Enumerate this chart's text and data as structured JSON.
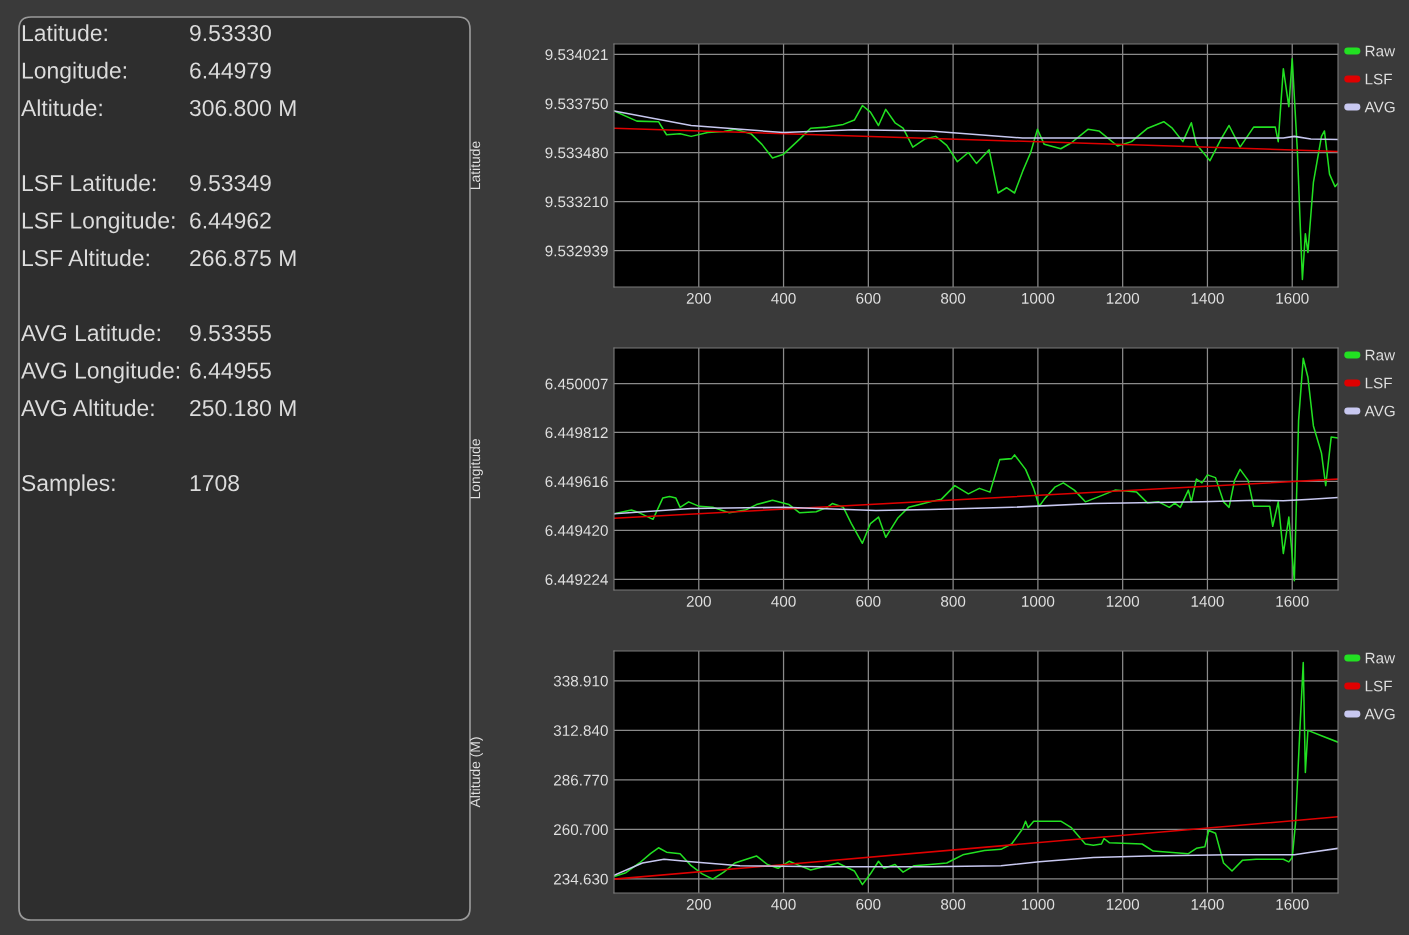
{
  "chart_data": [
    {
      "type": "other",
      "annotations": [
        "Latitude:",
        "9.53330",
        "Longitude:",
        "6.44979",
        "Altitude:",
        "306.800 M",
        "LSF Latitude:",
        "9.53349",
        "LSF Longitude:",
        "6.44962",
        "LSF Altitude:",
        "266.875 M",
        "AVG Latitude:",
        "9.53355",
        "AVG Longitude:",
        "6.44955",
        "AVG Altitude:",
        "250.180 M",
        "Samples:",
        "1708"
      ]
    },
    {
      "type": "line",
      "ylabel": "Latitude",
      "xlim": [
        0,
        1708
      ],
      "xticks": [
        200,
        400,
        600,
        800,
        1000,
        1200,
        1400,
        1600
      ],
      "ylim": [
        9.532739,
        9.534078
      ],
      "yticks": [
        9.534021,
        {
          "value": 9.53375,
          "label": "9.533750"
        },
        {
          "value": 9.53348,
          "label": "9.533480"
        },
        {
          "value": 9.53321,
          "label": "9.533210"
        },
        9.532939
      ],
      "grid": true,
      "legend": "right",
      "series": [
        {
          "name": "Raw",
          "color": "#22e022",
          "x": [
            0,
            54,
            105,
            124,
            156,
            182,
            221,
            259,
            285,
            323,
            349,
            374,
            400,
            438,
            464,
            503,
            541,
            567,
            586,
            605,
            624,
            641,
            663,
            682,
            705,
            733,
            759,
            785,
            810,
            836,
            855,
            885,
            906,
            926,
            945,
            964,
            983,
            999,
            1015,
            1054,
            1079,
            1118,
            1144,
            1188,
            1221,
            1259,
            1297,
            1317,
            1342,
            1362,
            1374,
            1406,
            1432,
            1451,
            1477,
            1509,
            1560,
            1567,
            1579,
            1592,
            1600,
            1612,
            1624,
            1631,
            1637,
            1650,
            1669,
            1676,
            1688,
            1701,
            1708
          ],
          "values": [
            9.533709,
            9.533653,
            9.53365,
            9.533578,
            9.533584,
            9.533569,
            9.53359,
            9.533596,
            9.533608,
            9.533584,
            9.533525,
            9.53345,
            9.533471,
            9.533554,
            9.533614,
            9.53362,
            9.533635,
            9.533659,
            9.533739,
            9.533703,
            9.533629,
            9.533718,
            9.533644,
            9.533614,
            9.53351,
            9.533554,
            9.533569,
            9.533519,
            9.533429,
            9.53348,
            9.53342,
            9.533495,
            9.533257,
            9.533286,
            9.533257,
            9.533376,
            9.53348,
            9.533608,
            9.533525,
            9.533501,
            9.533534,
            9.533608,
            9.533599,
            9.533516,
            9.53354,
            9.533614,
            9.53365,
            9.533614,
            9.53354,
            9.533644,
            9.533525,
            9.533435,
            9.533554,
            9.533629,
            9.53351,
            9.53362,
            9.53362,
            9.53354,
            9.533942,
            9.533733,
            9.533996,
            9.533495,
            9.53278,
            9.533033,
            9.532929,
            9.533316,
            9.533569,
            9.533599,
            9.533361,
            9.533292,
            9.53331
          ]
        },
        {
          "name": "LSF",
          "color": "#e00000",
          "x": [
            0,
            1708
          ],
          "values": [
            9.533614,
            9.533486
          ]
        },
        {
          "name": "AVG",
          "color": "#c8c8f0",
          "x": [
            0,
            182,
            400,
            567,
            746,
            964,
            1579,
            1605,
            1644,
            1708
          ],
          "values": [
            9.533709,
            9.533629,
            9.53359,
            9.533605,
            9.533599,
            9.53356,
            9.53356,
            9.533569,
            9.533554,
            9.533552
          ]
        }
      ]
    },
    {
      "type": "line",
      "ylabel": "Longitude",
      "xlim": [
        0,
        1708
      ],
      "xticks": [
        200,
        400,
        600,
        800,
        1000,
        1200,
        1400,
        1600
      ],
      "ylim": [
        6.449181,
        6.45015
      ],
      "yticks": [
        6.450007,
        6.449812,
        6.449616,
        {
          "value": 6.44942,
          "label": "6.449420"
        },
        6.449224
      ],
      "grid": true,
      "legend": "right",
      "series": [
        {
          "name": "Raw",
          "color": "#22e022",
          "x": [
            0,
            41,
            60,
            92,
            105,
            115,
            131,
            146,
            156,
            176,
            201,
            233,
            272,
            310,
            336,
            374,
            413,
            438,
            477,
            503,
            515,
            541,
            560,
            586,
            605,
            624,
            641,
            669,
            695,
            721,
            746,
            772,
            804,
            836,
            862,
            887,
            910,
            938,
            945,
            971,
            990,
            1003,
            1015,
            1041,
            1060,
            1086,
            1112,
            1144,
            1182,
            1208,
            1233,
            1259,
            1285,
            1310,
            1323,
            1336,
            1355,
            1362,
            1374,
            1387,
            1400,
            1419,
            1438,
            1451,
            1464,
            1477,
            1496,
            1509,
            1547,
            1554,
            1567,
            1579,
            1592,
            1605,
            1615,
            1626,
            1637,
            1650,
            1669,
            1679,
            1692,
            1708
          ],
          "values": [
            6.449486,
            6.449501,
            6.44949,
            6.449464,
            6.449512,
            6.449549,
            6.449555,
            6.449549,
            6.449512,
            6.449534,
            6.449516,
            6.449512,
            6.44949,
            6.449501,
            6.449523,
            6.44954,
            6.449523,
            6.44949,
            6.449494,
            6.449512,
            6.449527,
            6.449512,
            6.449447,
            6.449368,
            6.449447,
            6.449473,
            6.449392,
            6.449468,
            6.449512,
            6.449523,
            6.449534,
            6.449544,
            6.449599,
            6.449566,
            6.449588,
            6.449573,
            6.449703,
            6.449707,
            6.449722,
            6.449664,
            6.449588,
            6.449516,
            6.449544,
            6.449594,
            6.44961,
            6.449581,
            6.449534,
            6.449555,
            6.449581,
            6.449577,
            6.449573,
            6.449529,
            6.449534,
            6.449512,
            6.449529,
            6.449512,
            6.449581,
            6.449534,
            6.449625,
            6.44961,
            6.449642,
            6.449631,
            6.449534,
            6.449512,
            6.44962,
            6.449664,
            6.44962,
            6.449516,
            6.449516,
            6.449436,
            6.449534,
            6.449327,
            6.449473,
            6.449218,
            6.449859,
            6.450109,
            6.450033,
            6.449838,
            6.449729,
            6.449599,
            6.449794,
            6.44979
          ]
        },
        {
          "name": "LSF",
          "color": "#e00000",
          "x": [
            0,
            1708
          ],
          "values": [
            6.449468,
            6.449625
          ]
        },
        {
          "name": "AVG",
          "color": "#c8c8f0",
          "x": [
            0,
            182,
            400,
            618,
            746,
            938,
            1131,
            1387,
            1515,
            1579,
            1644,
            1708
          ],
          "values": [
            6.449486,
            6.449507,
            6.449512,
            6.449499,
            6.449503,
            6.449512,
            6.449527,
            6.449534,
            6.44954,
            6.449538,
            6.449544,
            6.449551
          ]
        }
      ]
    },
    {
      "type": "line",
      "ylabel": "Altitude (M)",
      "xlim": [
        0,
        1708
      ],
      "xticks": [
        200,
        400,
        600,
        800,
        1000,
        1200,
        1400,
        1600
      ],
      "ylim": [
        227.2,
        354.6
      ],
      "yticks": [
        {
          "value": 338.91,
          "label": "338.910"
        },
        {
          "value": 312.84,
          "label": "312.840"
        },
        {
          "value": 286.77,
          "label": "286.770"
        },
        {
          "value": 260.7,
          "label": "260.700"
        },
        {
          "value": 234.63,
          "label": "234.630"
        }
      ],
      "grid": true,
      "legend": "right",
      "series": [
        {
          "name": "Raw",
          "color": "#22e022",
          "x": [
            0,
            28,
            60,
            86,
            105,
            124,
            156,
            182,
            208,
            233,
            259,
            285,
            336,
            362,
            387,
            413,
            438,
            464,
            490,
            528,
            567,
            586,
            605,
            624,
            637,
            663,
            682,
            708,
            746,
            785,
            823,
            874,
            913,
            938,
            964,
            971,
            977,
            990,
            1054,
            1079,
            1112,
            1131,
            1150,
            1156,
            1169,
            1246,
            1272,
            1310,
            1355,
            1374,
            1394,
            1403,
            1419,
            1438,
            1458,
            1483,
            1515,
            1579,
            1592,
            1600,
            1608,
            1618,
            1626,
            1631,
            1637,
            1669,
            1708
          ],
          "values": [
            235.9,
            237.9,
            243.0,
            247.9,
            251.0,
            248.7,
            247.9,
            241.6,
            237.3,
            234.5,
            238.2,
            243.0,
            246.7,
            242.2,
            240.2,
            243.9,
            241.6,
            239.3,
            240.8,
            243.0,
            238.8,
            231.6,
            237.3,
            243.9,
            240.2,
            242.2,
            238.2,
            241.6,
            242.2,
            243.0,
            247.3,
            249.6,
            250.2,
            253.0,
            261.0,
            265.0,
            261.6,
            265.0,
            265.0,
            261.6,
            253.0,
            252.4,
            253.0,
            255.9,
            253.6,
            253.0,
            249.3,
            248.7,
            247.9,
            250.7,
            251.6,
            260.1,
            258.7,
            243.0,
            238.8,
            244.5,
            245.0,
            245.0,
            243.6,
            245.9,
            264.4,
            312.8,
            348.5,
            290.6,
            312.8,
            310.0,
            306.6
          ]
        },
        {
          "name": "LSF",
          "color": "#e00000",
          "x": [
            0,
            1708
          ],
          "values": [
            234.5,
            267.3
          ]
        },
        {
          "name": "AVG",
          "color": "#c8c8f0",
          "x": [
            0,
            67,
            118,
            182,
            297,
            490,
            746,
            913,
            1003,
            1131,
            1259,
            1451,
            1605,
            1644,
            1708
          ],
          "values": [
            236.5,
            243.0,
            245.0,
            243.6,
            241.6,
            241.0,
            241.0,
            241.6,
            243.6,
            245.9,
            246.7,
            247.3,
            247.3,
            248.7,
            250.7
          ]
        }
      ]
    }
  ]
}
